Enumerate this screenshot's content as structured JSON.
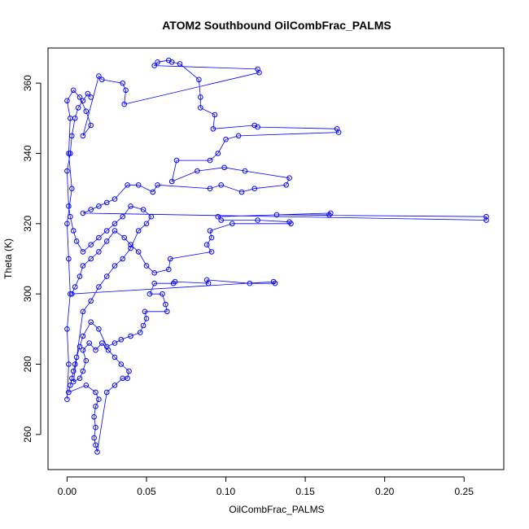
{
  "chart_data": {
    "type": "scatter",
    "title": "ATOM2 Southbound OilCombFrac_PALMS",
    "xlabel": "OilCombFrac_PALMS",
    "ylabel": "Theta (K)",
    "xlim": [
      -0.012,
      0.275
    ],
    "ylim": [
      250,
      370
    ],
    "x_ticks": [
      0.0,
      0.05,
      0.1,
      0.15,
      0.2,
      0.25
    ],
    "x_tick_labels": [
      "0.00",
      "0.05",
      "0.10",
      "0.15",
      "0.20",
      "0.25"
    ],
    "y_ticks": [
      260,
      280,
      300,
      320,
      340,
      360
    ],
    "y_tick_labels": [
      "260",
      "280",
      "300",
      "320",
      "340",
      "360"
    ],
    "grid": false,
    "legend": "none",
    "marker": "open-circle",
    "connect_points": true,
    "color": "#0000ff",
    "series": [
      {
        "points": [
          [
            0.0,
            270.0
          ],
          [
            0.001,
            280.0
          ],
          [
            0.0,
            290.0
          ],
          [
            0.002,
            300.0
          ],
          [
            0.001,
            310.0
          ],
          [
            0.0,
            320.0
          ],
          [
            0.003,
            330.0
          ],
          [
            0.001,
            340.0
          ],
          [
            0.002,
            350.0
          ],
          [
            0.0,
            355.0
          ],
          [
            0.004,
            358.0
          ],
          [
            0.008,
            356.0
          ],
          [
            0.012,
            352.0
          ],
          [
            0.015,
            348.0
          ],
          [
            0.01,
            345.0
          ],
          [
            0.02,
            362.0
          ],
          [
            0.022,
            361.0
          ],
          [
            0.035,
            360.0
          ],
          [
            0.037,
            358.0
          ],
          [
            0.036,
            354.0
          ],
          [
            0.121,
            363.0
          ],
          [
            0.12,
            364.0
          ],
          [
            0.055,
            365.0
          ],
          [
            0.057,
            366.0
          ],
          [
            0.064,
            366.5
          ],
          [
            0.066,
            366.0
          ],
          [
            0.071,
            365.5
          ],
          [
            0.083,
            361.0
          ],
          [
            0.084,
            356.0
          ],
          [
            0.084,
            353.0
          ],
          [
            0.093,
            351.0
          ],
          [
            0.092,
            347.0
          ],
          [
            0.118,
            348.0
          ],
          [
            0.12,
            347.5
          ],
          [
            0.17,
            347.0
          ],
          [
            0.171,
            346.0
          ],
          [
            0.108,
            345.0
          ],
          [
            0.1,
            344.0
          ],
          [
            0.095,
            340.0
          ],
          [
            0.09,
            338.0
          ],
          [
            0.069,
            338.0
          ],
          [
            0.066,
            332.0
          ],
          [
            0.082,
            335.0
          ],
          [
            0.099,
            336.0
          ],
          [
            0.112,
            335.0
          ],
          [
            0.14,
            333.0
          ],
          [
            0.138,
            331.0
          ],
          [
            0.118,
            330.0
          ],
          [
            0.11,
            329.0
          ],
          [
            0.097,
            331.0
          ],
          [
            0.09,
            330.0
          ],
          [
            0.057,
            331.0
          ],
          [
            0.054,
            329.0
          ],
          [
            0.045,
            331.0
          ],
          [
            0.038,
            331.0
          ],
          [
            0.03,
            327.0
          ],
          [
            0.025,
            326.0
          ],
          [
            0.02,
            325.0
          ],
          [
            0.015,
            324.0
          ],
          [
            0.01,
            323.0
          ],
          [
            0.264,
            321.0
          ],
          [
            0.264,
            322.0
          ],
          [
            0.132,
            322.5
          ],
          [
            0.165,
            322.5
          ],
          [
            0.166,
            323.0
          ],
          [
            0.095,
            322.0
          ],
          [
            0.097,
            321.0
          ],
          [
            0.12,
            321.0
          ],
          [
            0.14,
            320.5
          ],
          [
            0.141,
            320.0
          ],
          [
            0.104,
            320.0
          ],
          [
            0.09,
            318.0
          ],
          [
            0.091,
            316.0
          ],
          [
            0.088,
            314.0
          ],
          [
            0.091,
            312.0
          ],
          [
            0.065,
            310.0
          ],
          [
            0.064,
            307.0
          ],
          [
            0.055,
            306.0
          ],
          [
            0.05,
            308.0
          ],
          [
            0.045,
            312.0
          ],
          [
            0.04,
            314.0
          ],
          [
            0.036,
            316.0
          ],
          [
            0.03,
            318.0
          ],
          [
            0.025,
            315.0
          ],
          [
            0.02,
            312.0
          ],
          [
            0.015,
            310.0
          ],
          [
            0.01,
            308.0
          ],
          [
            0.008,
            305.0
          ],
          [
            0.005,
            302.0
          ],
          [
            0.003,
            300.0
          ],
          [
            0.13,
            303.5
          ],
          [
            0.131,
            303.0
          ],
          [
            0.115,
            303.0
          ],
          [
            0.088,
            304.0
          ],
          [
            0.089,
            303.0
          ],
          [
            0.068,
            303.5
          ],
          [
            0.067,
            303.0
          ],
          [
            0.055,
            303.0
          ],
          [
            0.052,
            300.0
          ],
          [
            0.06,
            300.0
          ],
          [
            0.062,
            297.0
          ],
          [
            0.063,
            295.0
          ],
          [
            0.049,
            295.0
          ],
          [
            0.05,
            293.0
          ],
          [
            0.048,
            291.0
          ],
          [
            0.046,
            289.0
          ],
          [
            0.04,
            288.0
          ],
          [
            0.034,
            287.0
          ],
          [
            0.03,
            286.0
          ],
          [
            0.025,
            285.0
          ],
          [
            0.02,
            290.0
          ],
          [
            0.015,
            292.0
          ],
          [
            0.01,
            288.0
          ],
          [
            0.008,
            285.0
          ],
          [
            0.006,
            282.0
          ],
          [
            0.005,
            280.0
          ],
          [
            0.004,
            278.0
          ],
          [
            0.003,
            276.0
          ],
          [
            0.002,
            274.0
          ],
          [
            0.001,
            272.0
          ],
          [
            0.012,
            274.0
          ],
          [
            0.018,
            272.0
          ],
          [
            0.02,
            270.0
          ],
          [
            0.018,
            268.0
          ],
          [
            0.017,
            265.0
          ],
          [
            0.018,
            262.0
          ],
          [
            0.017,
            259.0
          ],
          [
            0.018,
            257.0
          ],
          [
            0.019,
            255.0
          ],
          [
            0.025,
            272.0
          ],
          [
            0.03,
            274.0
          ],
          [
            0.035,
            276.0
          ],
          [
            0.038,
            276.0
          ],
          [
            0.039,
            278.0
          ],
          [
            0.034,
            280.0
          ],
          [
            0.03,
            282.0
          ],
          [
            0.026,
            284.0
          ],
          [
            0.022,
            286.0
          ],
          [
            0.018,
            284.0
          ],
          [
            0.014,
            286.0
          ],
          [
            0.01,
            284.0
          ],
          [
            0.012,
            281.0
          ],
          [
            0.01,
            278.0
          ],
          [
            0.008,
            276.0
          ],
          [
            0.004,
            275.0
          ],
          [
            0.01,
            295.0
          ],
          [
            0.015,
            298.0
          ],
          [
            0.02,
            302.0
          ],
          [
            0.025,
            305.0
          ],
          [
            0.03,
            308.0
          ],
          [
            0.035,
            310.0
          ],
          [
            0.04,
            313.0
          ],
          [
            0.045,
            318.0
          ],
          [
            0.05,
            320.0
          ],
          [
            0.053,
            322.0
          ],
          [
            0.048,
            324.0
          ],
          [
            0.04,
            325.0
          ],
          [
            0.035,
            322.0
          ],
          [
            0.03,
            320.0
          ],
          [
            0.025,
            318.0
          ],
          [
            0.02,
            316.0
          ],
          [
            0.015,
            314.0
          ],
          [
            0.01,
            312.0
          ],
          [
            0.006,
            315.0
          ],
          [
            0.004,
            318.0
          ],
          [
            0.002,
            322.0
          ],
          [
            0.001,
            325.0
          ],
          [
            0.0,
            335.0
          ],
          [
            0.002,
            340.0
          ],
          [
            0.003,
            345.0
          ],
          [
            0.005,
            350.0
          ],
          [
            0.007,
            353.0
          ],
          [
            0.01,
            355.0
          ],
          [
            0.013,
            357.0
          ],
          [
            0.015,
            356.0
          ]
        ]
      }
    ]
  }
}
